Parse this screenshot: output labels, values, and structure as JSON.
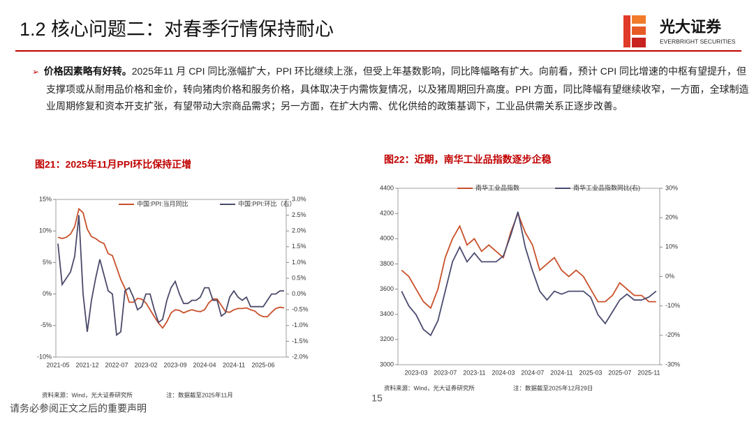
{
  "header": {
    "title": "1.2 核心问题二：对春季行情保持耐心",
    "logo_name": "光大证券",
    "logo_sub": "EVERBRIGHT SECURITIES"
  },
  "bullet": {
    "lead": "价格因素略有好转。",
    "text": "2025年11 月 CPI 同比涨幅扩大，PPI 环比继续上涨，但受上年基数影响，同比降幅略有扩大。向前看，预计 CPI 同比增速的中枢有望提升，但支撑项或从耐用品价格和金价，转向猪肉价格和服务价格，具体取决于内需恢复情况，以及猪周期回升高度。PPI 方面，同比降幅有望继续收窄，一方面，全球制造业周期修复和资本开支扩张，有望带动大宗商品需求；另一方面，在扩大内需、优化供给的政策基调下，工业品供需关系正逐步改善。"
  },
  "chart_data": [
    {
      "type": "line",
      "title": "图21：2025年11月PPI环比保持正增",
      "source": "资料来源：Wind，光大证券研究所",
      "note": "注：数据截至2025年11月",
      "legend": "top",
      "categories": [
        "2021-05",
        null,
        null,
        null,
        null,
        null,
        null,
        "2021-12",
        null,
        null,
        null,
        null,
        null,
        null,
        "2022-07",
        null,
        null,
        null,
        null,
        null,
        null,
        "2023-02",
        null,
        null,
        null,
        null,
        null,
        null,
        "2023-09",
        null,
        null,
        null,
        null,
        null,
        null,
        "2024-04",
        null,
        null,
        null,
        null,
        null,
        null,
        "2024-11",
        null,
        null,
        null,
        null,
        null,
        null,
        "2025-06",
        null,
        null,
        null,
        null,
        null
      ],
      "series": [
        {
          "name": "中国:PPI:当月同比",
          "color": "#c8502a",
          "values": [
            9.0,
            8.8,
            9.0,
            9.5,
            10.7,
            13.5,
            12.9,
            10.3,
            9.1,
            8.8,
            8.3,
            8.0,
            6.4,
            6.1,
            4.2,
            2.3,
            0.9,
            -1.3,
            -1.3,
            -0.7,
            -0.8,
            -1.4,
            -2.5,
            -3.6,
            -4.6,
            -5.4,
            -4.4,
            -3.0,
            -2.5,
            -2.6,
            -3.0,
            -2.7,
            -2.5,
            -2.7,
            -2.8,
            -2.5,
            -1.4,
            -0.8,
            -0.8,
            -1.8,
            -2.8,
            -2.9,
            -2.5,
            -2.3,
            -2.3,
            -2.2,
            -2.5,
            -2.7,
            -3.3,
            -3.6,
            -3.6,
            -2.9,
            -2.3,
            -2.1,
            -2.2
          ]
        },
        {
          "name": "中国:PPI:环比（右）",
          "color": "#4a4a6a",
          "axis": "y2",
          "values": [
            1.6,
            0.3,
            0.5,
            0.7,
            1.2,
            2.5,
            0.0,
            -1.2,
            -0.2,
            0.5,
            1.1,
            0.6,
            0.1,
            0.0,
            -1.3,
            -1.2,
            0.1,
            0.2,
            -0.1,
            -0.5,
            -0.4,
            0.0,
            0.0,
            -0.5,
            -0.9,
            -0.8,
            -0.2,
            0.2,
            0.4,
            0.0,
            -0.3,
            -0.3,
            -0.2,
            -0.2,
            -0.1,
            0.2,
            0.2,
            -0.2,
            -0.2,
            -0.7,
            -0.6,
            -0.1,
            0.1,
            -0.1,
            -0.2,
            -0.1,
            -0.4,
            -0.4,
            -0.4,
            -0.4,
            -0.2,
            0.0,
            0.0,
            0.1,
            0.1
          ]
        }
      ],
      "ylim": [
        -10,
        15
      ],
      "yticks": [
        {
          "value": -10,
          "label": "-10%"
        },
        {
          "value": -5,
          "label": "-5%"
        },
        {
          "value": 0,
          "label": "0%"
        },
        {
          "value": 5,
          "label": "5%"
        },
        {
          "value": 10,
          "label": "10%"
        },
        {
          "value": 15,
          "label": "15%"
        }
      ],
      "y2lim": [
        -2,
        3
      ],
      "y2ticks": [
        {
          "value": -2,
          "label": "-2.0%"
        },
        {
          "value": -1.5,
          "label": "-1.5%"
        },
        {
          "value": -1,
          "label": "-1.0%"
        },
        {
          "value": -0.5,
          "label": "-0.5%"
        },
        {
          "value": 0,
          "label": "0.0%"
        },
        {
          "value": 0.5,
          "label": "0.5%"
        },
        {
          "value": 1,
          "label": "1.0%"
        },
        {
          "value": 1.5,
          "label": "1.5%"
        },
        {
          "value": 2,
          "label": "2.0%"
        },
        {
          "value": 2.5,
          "label": "2.5%"
        },
        {
          "value": 3,
          "label": "3.0%"
        }
      ]
    },
    {
      "type": "line",
      "title": "图22：近期，南华工业品指数逐步企稳",
      "source": "资料来源：Wind，光大证券研究所",
      "note": "注：数据截至2025年12月29日",
      "legend": "top-left",
      "categories": [
        null,
        null,
        "2023-03",
        null,
        null,
        null,
        "2023-07",
        null,
        null,
        null,
        "2023-11",
        null,
        null,
        null,
        "2024-03",
        null,
        null,
        null,
        "2024-07",
        null,
        null,
        null,
        "2024-11",
        null,
        null,
        null,
        "2025-03",
        null,
        null,
        null,
        "2025-07",
        null,
        null,
        null,
        "2025-11",
        null
      ],
      "series": [
        {
          "name": "南华工业品指数",
          "color": "#c8502a",
          "values": [
            3750,
            3700,
            3600,
            3500,
            3450,
            3600,
            3850,
            4000,
            4100,
            3950,
            4000,
            3900,
            3950,
            3900,
            3850,
            4050,
            4200,
            4050,
            3950,
            3750,
            3800,
            3850,
            3750,
            3700,
            3750,
            3700,
            3600,
            3500,
            3500,
            3550,
            3650,
            3600,
            3550,
            3550,
            3500,
            3500
          ]
        },
        {
          "name": "南华工业品指数同比(右)",
          "color": "#4a4a70",
          "axis": "y2",
          "values": [
            -5,
            -10,
            -13,
            -18,
            -20,
            -15,
            -5,
            5,
            10,
            5,
            8,
            5,
            5,
            5,
            7,
            14,
            22,
            10,
            2,
            -5,
            -8,
            -5,
            -6,
            -5,
            -5,
            -5,
            -7,
            -13,
            -16,
            -12,
            -8,
            -6,
            -8,
            -8,
            -7,
            -5
          ]
        }
      ],
      "ylim": [
        3000,
        4400
      ],
      "yticks": [
        3000,
        3200,
        3400,
        3600,
        3800,
        4000,
        4200,
        4400
      ],
      "y2lim": [
        -30,
        30
      ],
      "y2ticks": [
        {
          "value": -30,
          "label": "-30%"
        },
        {
          "value": -20,
          "label": "-20%"
        },
        {
          "value": -10,
          "label": "-10%"
        },
        {
          "value": 0,
          "label": "0%"
        },
        {
          "value": 10,
          "label": "10%"
        },
        {
          "value": 20,
          "label": "20%"
        },
        {
          "value": 30,
          "label": "30%"
        }
      ]
    }
  ],
  "footer": {
    "page": "15",
    "disclaimer": "请务必参阅正文之后的重要声明"
  }
}
